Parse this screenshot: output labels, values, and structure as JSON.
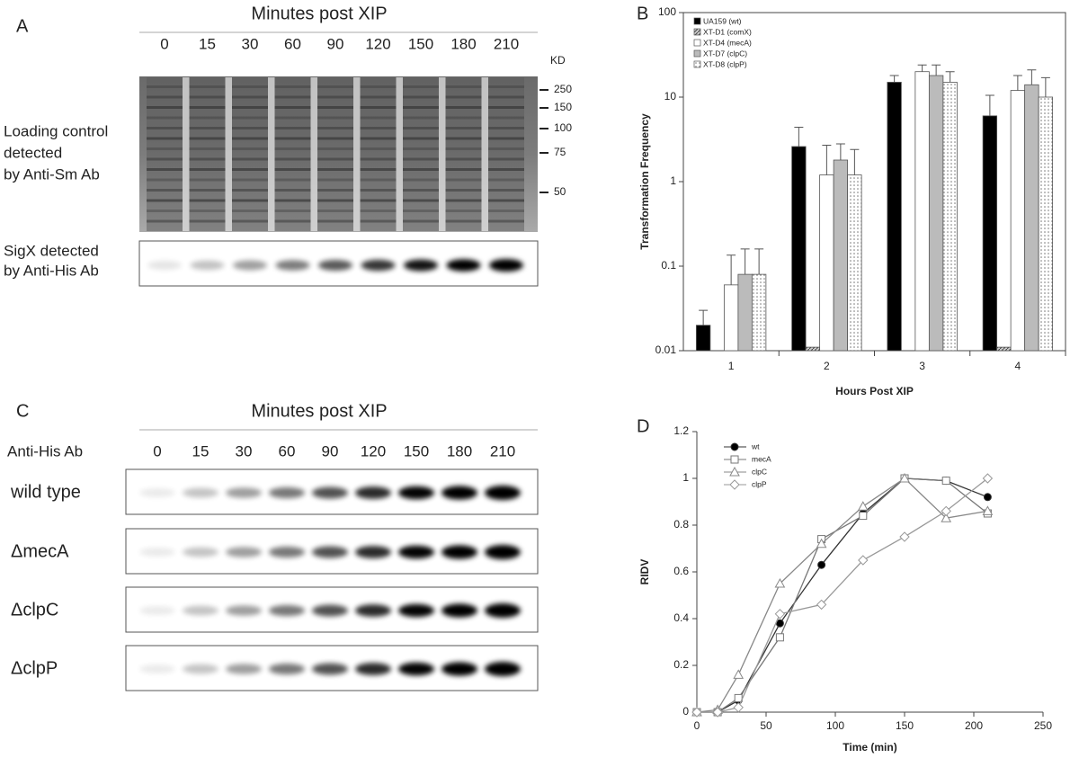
{
  "panel_a": {
    "label": "A",
    "header": "Minutes post XIP",
    "lanes": [
      "0",
      "15",
      "30",
      "60",
      "90",
      "120",
      "150",
      "180",
      "210"
    ],
    "kd_label": "KD",
    "markers": [
      "250",
      "150",
      "100",
      "75",
      "50"
    ],
    "loading_label": [
      "Loading control",
      "detected",
      "by Anti-Sm Ab"
    ],
    "sigx_label": [
      "SigX detected",
      "by Anti-His Ab"
    ]
  },
  "panel_c": {
    "label": "C",
    "header": "Minutes post XIP",
    "antibody": "Anti-His Ab",
    "lanes": [
      "0",
      "15",
      "30",
      "60",
      "90",
      "120",
      "150",
      "180",
      "210"
    ],
    "rows": [
      "wild type",
      "ΔmecA",
      "ΔclpC",
      "ΔclpP"
    ]
  },
  "chart_data": [
    {
      "type": "bar",
      "panel": "B",
      "categories": [
        "1",
        "2",
        "3",
        "4"
      ],
      "series": [
        {
          "name": "UA159 (wt)",
          "color": "#000000",
          "values": [
            0.02,
            2.6,
            15,
            6
          ],
          "errors": [
            0.01,
            1.8,
            3,
            4.5
          ]
        },
        {
          "name": "XT-D1 (comX)",
          "color": "#888888",
          "values": [
            null,
            0.011,
            null,
            0.011
          ],
          "errors": [
            null,
            null,
            null,
            null
          ]
        },
        {
          "name": "XT-D4 (mecA)",
          "color": "#ffffff",
          "values": [
            0.06,
            1.2,
            20,
            12
          ],
          "errors": [
            0.075,
            1.5,
            4,
            6
          ]
        },
        {
          "name": "XT-D7 (clpC)",
          "color": "#bbbbbb",
          "values": [
            0.08,
            1.8,
            18,
            14
          ],
          "errors": [
            0.08,
            1,
            6,
            7
          ]
        },
        {
          "name": "XT-D8 (clpP)",
          "color": "#eeeeee",
          "values": [
            0.08,
            1.2,
            15,
            10
          ],
          "errors": [
            0.08,
            1.2,
            5,
            7
          ]
        }
      ],
      "ylabel": "Transformation Frequency",
      "xlabel": "Hours Post XIP",
      "log_y": true,
      "ylim": [
        0.01,
        100
      ],
      "yticks": [
        0.01,
        0.1,
        1,
        10,
        100
      ],
      "legend": "upper left"
    },
    {
      "type": "line",
      "panel": "D",
      "x": [
        0,
        15,
        30,
        60,
        90,
        120,
        150,
        180,
        210
      ],
      "series": [
        {
          "name": "wt",
          "color": "#333333",
          "marker": "circle",
          "values": [
            0,
            0,
            0.05,
            0.38,
            0.63,
            0.85,
            1.0,
            0.99,
            0.92
          ]
        },
        {
          "name": "mecA",
          "color": "#777777",
          "marker": "square",
          "values": [
            0,
            0,
            0.06,
            0.32,
            0.74,
            0.84,
            1.0,
            0.99,
            0.85
          ]
        },
        {
          "name": "clpC",
          "color": "#888888",
          "marker": "triangle",
          "values": [
            0,
            0.01,
            0.16,
            0.55,
            0.72,
            0.88,
            1.0,
            0.83,
            0.86
          ]
        },
        {
          "name": "clpP",
          "color": "#999999",
          "marker": "diamond",
          "values": [
            0,
            0,
            0.02,
            0.42,
            0.46,
            0.65,
            0.75,
            0.86,
            1.0
          ]
        }
      ],
      "xlabel": "Time (min)",
      "ylabel": "RIDV",
      "xlim": [
        0,
        250
      ],
      "xticks": [
        0,
        50,
        100,
        150,
        200,
        250
      ],
      "ylim": [
        0,
        1.2
      ],
      "yticks": [
        0,
        0.2,
        0.4,
        0.6,
        0.8,
        1,
        1.2
      ],
      "legend": "upper left"
    }
  ]
}
